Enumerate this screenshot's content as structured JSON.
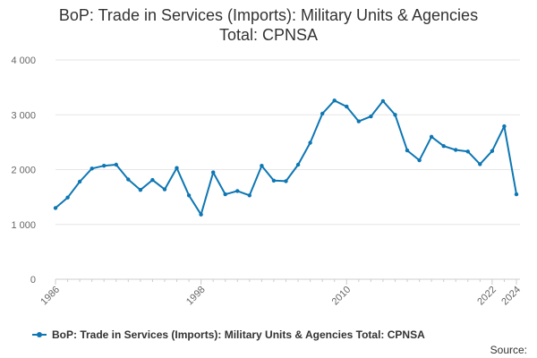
{
  "chart_data": {
    "type": "line",
    "title_line1": "BoP: Trade in Services (Imports): Military Units & Agencies",
    "title_line2": "Total: CPNSA",
    "xlabel": "",
    "ylabel": "",
    "ylim": [
      0,
      4000
    ],
    "yticks": [
      0,
      1000,
      2000,
      3000,
      4000
    ],
    "ytick_labels": [
      "0",
      "1 000",
      "2 000",
      "3 000",
      "4 000"
    ],
    "xlim": [
      1986,
      2024
    ],
    "xticks": [
      1986,
      1998,
      2010,
      2022,
      2024
    ],
    "xtick_labels": [
      "1986",
      "1998",
      "2010",
      "2022",
      "2024"
    ],
    "grid": "horizontal",
    "legend_position": "bottom-left",
    "series": [
      {
        "name": "BoP: Trade in Services (Imports): Military Units & Agencies Total: CPNSA",
        "color": "#0e77b3",
        "x": [
          1986,
          1987,
          1988,
          1989,
          1990,
          1991,
          1992,
          1993,
          1994,
          1995,
          1996,
          1997,
          1998,
          1999,
          2000,
          2001,
          2002,
          2003,
          2004,
          2005,
          2006,
          2007,
          2008,
          2009,
          2010,
          2011,
          2012,
          2013,
          2014,
          2015,
          2016,
          2017,
          2018,
          2019,
          2020,
          2021,
          2022,
          2023,
          2024
        ],
        "values": [
          1300,
          1490,
          1780,
          2020,
          2070,
          2090,
          1820,
          1630,
          1810,
          1640,
          2030,
          1530,
          1180,
          1950,
          1550,
          1610,
          1530,
          2070,
          1800,
          1790,
          2090,
          2490,
          3020,
          3260,
          3150,
          2880,
          2970,
          3250,
          3000,
          2350,
          2170,
          2600,
          2430,
          2360,
          2330,
          2100,
          2340,
          2790,
          1550
        ]
      }
    ]
  },
  "legend": {
    "label": "BoP: Trade in Services (Imports): Military Units & Agencies Total: CPNSA"
  },
  "source_label": "Source:"
}
